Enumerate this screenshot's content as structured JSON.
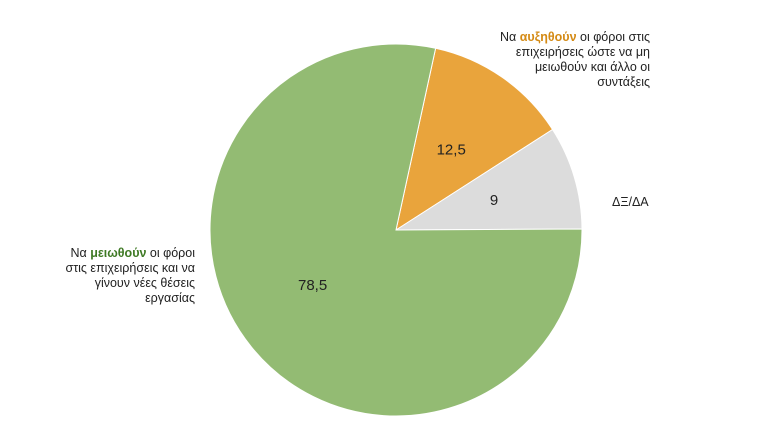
{
  "chart_data": {
    "type": "pie",
    "slices": [
      {
        "key": "decrease",
        "value": 78.5,
        "value_label": "78,5",
        "color": "#93bb73",
        "highlight_color": "#3f7a25",
        "label_prefix": "Να ",
        "label_highlight": "μειωθούν",
        "label_suffix": " οι φόροι στις επιχειρήσεις και να γίνουν νέες θέσεις εργασίας"
      },
      {
        "key": "increase",
        "value": 12.5,
        "value_label": "12,5",
        "color": "#e9a43c",
        "highlight_color": "#d48a14",
        "label_prefix": "Να ",
        "label_highlight": "αυξηθούν",
        "label_suffix": " οι φόροι στις επιχειρήσεις ώστε να μη μειωθούν και άλλο οι συντάξεις"
      },
      {
        "key": "dk",
        "value": 9,
        "value_label": "9",
        "color": "#dcdcdc",
        "label_text": "ΔΞ/ΔΑ"
      }
    ]
  }
}
